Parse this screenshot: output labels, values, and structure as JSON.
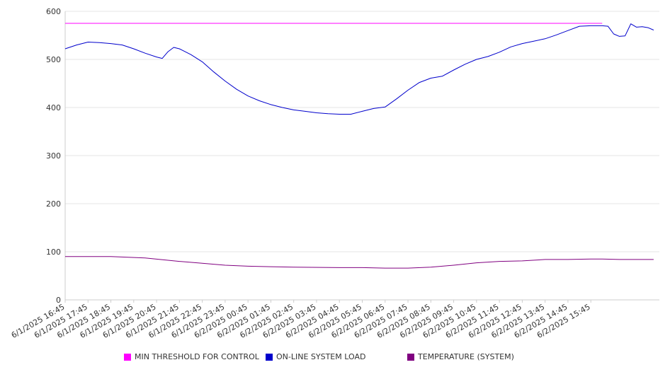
{
  "chart_data": {
    "type": "line",
    "title": "",
    "xlabel": "",
    "ylabel": "",
    "ylim": [
      0,
      600
    ],
    "yticks": [
      "0",
      "100",
      "200",
      "300",
      "400",
      "500",
      "600"
    ],
    "grid": true,
    "legend_position": "bottom",
    "x": [
      "6/1/2025 16:45",
      "6/1/2025 17:45",
      "6/1/2025 18:45",
      "6/1/2025 19:45",
      "6/1/2025 20:45",
      "6/1/2025 21:45",
      "6/1/2025 22:45",
      "6/1/2025 23:45",
      "6/2/2025 00:45",
      "6/2/2025 01:45",
      "6/2/2025 02:45",
      "6/2/2025 03:45",
      "6/2/2025 04:45",
      "6/2/2025 05:45",
      "6/2/2025 06:45",
      "6/2/2025 07:45",
      "6/2/2025 08:45",
      "6/2/2025 09:45",
      "6/2/2025 10:45",
      "6/2/2025 11:45",
      "6/2/2025 12:45",
      "6/2/2025 13:45",
      "6/2/2025 14:45",
      "6/2/2025 15:45"
    ],
    "series": [
      {
        "name": "MIN THRESHOLD FOR CONTROL",
        "color": "#ff00ff",
        "points": [
          [
            "6/1/2025 16:45",
            575
          ],
          [
            "6/2/2025 16:15",
            575
          ]
        ]
      },
      {
        "name": "ON-LINE SYSTEM LOAD",
        "color": "#0000cc",
        "points": [
          [
            "6/1/2025 16:45",
            522
          ],
          [
            "6/1/2025 17:15",
            530
          ],
          [
            "6/1/2025 17:45",
            536
          ],
          [
            "6/1/2025 18:15",
            535
          ],
          [
            "6/1/2025 18:45",
            533
          ],
          [
            "6/1/2025 19:15",
            530
          ],
          [
            "6/1/2025 19:45",
            522
          ],
          [
            "6/1/2025 20:15",
            513
          ],
          [
            "6/1/2025 20:45",
            505
          ],
          [
            "6/1/2025 21:00",
            502
          ],
          [
            "6/1/2025 21:15",
            516
          ],
          [
            "6/1/2025 21:30",
            525
          ],
          [
            "6/1/2025 21:45",
            522
          ],
          [
            "6/1/2025 22:15",
            510
          ],
          [
            "6/1/2025 22:45",
            495
          ],
          [
            "6/1/2025 23:15",
            474
          ],
          [
            "6/1/2025 23:45",
            455
          ],
          [
            "6/2/2025 00:15",
            438
          ],
          [
            "6/2/2025 00:45",
            424
          ],
          [
            "6/2/2025 01:15",
            414
          ],
          [
            "6/2/2025 01:45",
            406
          ],
          [
            "6/2/2025 02:15",
            400
          ],
          [
            "6/2/2025 02:45",
            395
          ],
          [
            "6/2/2025 03:15",
            392
          ],
          [
            "6/2/2025 03:45",
            389
          ],
          [
            "6/2/2025 04:15",
            387
          ],
          [
            "6/2/2025 04:45",
            386
          ],
          [
            "6/2/2025 05:15",
            386
          ],
          [
            "6/2/2025 05:45",
            392
          ],
          [
            "6/2/2025 06:15",
            398
          ],
          [
            "6/2/2025 06:45",
            401
          ],
          [
            "6/2/2025 07:15",
            418
          ],
          [
            "6/2/2025 07:45",
            436
          ],
          [
            "6/2/2025 08:15",
            452
          ],
          [
            "6/2/2025 08:45",
            461
          ],
          [
            "6/2/2025 09:15",
            465
          ],
          [
            "6/2/2025 09:45",
            478
          ],
          [
            "6/2/2025 10:15",
            490
          ],
          [
            "6/2/2025 10:45",
            500
          ],
          [
            "6/2/2025 11:15",
            506
          ],
          [
            "6/2/2025 11:45",
            515
          ],
          [
            "6/2/2025 12:15",
            526
          ],
          [
            "6/2/2025 12:45",
            533
          ],
          [
            "6/2/2025 13:15",
            538
          ],
          [
            "6/2/2025 13:45",
            543
          ],
          [
            "6/2/2025 14:15",
            551
          ],
          [
            "6/2/2025 14:45",
            560
          ],
          [
            "6/2/2025 15:15",
            569
          ],
          [
            "6/2/2025 15:45",
            570
          ],
          [
            "6/2/2025 16:15",
            570
          ],
          [
            "6/2/2025 16:30",
            569
          ],
          [
            "6/2/2025 16:45",
            553
          ],
          [
            "6/2/2025 17:00",
            548
          ],
          [
            "6/2/2025 17:15",
            549
          ],
          [
            "6/2/2025 17:30",
            574
          ],
          [
            "6/2/2025 17:45",
            567
          ],
          [
            "6/2/2025 18:00",
            568
          ],
          [
            "6/2/2025 18:15",
            566
          ],
          [
            "6/2/2025 18:30",
            561
          ]
        ]
      },
      {
        "name": "TEMPERATURE (SYSTEM)",
        "color": "#800080",
        "points": [
          [
            "6/1/2025 16:45",
            90
          ],
          [
            "6/1/2025 18:45",
            90
          ],
          [
            "6/1/2025 20:15",
            87
          ],
          [
            "6/1/2025 21:45",
            80
          ],
          [
            "6/1/2025 22:45",
            76
          ],
          [
            "6/1/2025 23:45",
            72
          ],
          [
            "6/2/2025 00:45",
            70
          ],
          [
            "6/2/2025 01:45",
            69
          ],
          [
            "6/2/2025 02:45",
            68
          ],
          [
            "6/2/2025 04:45",
            67
          ],
          [
            "6/2/2025 05:45",
            67
          ],
          [
            "6/2/2025 06:45",
            66
          ],
          [
            "6/2/2025 07:45",
            66
          ],
          [
            "6/2/2025 08:45",
            68
          ],
          [
            "6/2/2025 09:45",
            72
          ],
          [
            "6/2/2025 10:45",
            77
          ],
          [
            "6/2/2025 11:45",
            80
          ],
          [
            "6/2/2025 12:45",
            81
          ],
          [
            "6/2/2025 13:45",
            84
          ],
          [
            "6/2/2025 14:45",
            84
          ],
          [
            "6/2/2025 15:45",
            85
          ],
          [
            "6/2/2025 16:15",
            85
          ],
          [
            "6/2/2025 17:00",
            84
          ],
          [
            "6/2/2025 18:30",
            84
          ]
        ]
      }
    ]
  }
}
